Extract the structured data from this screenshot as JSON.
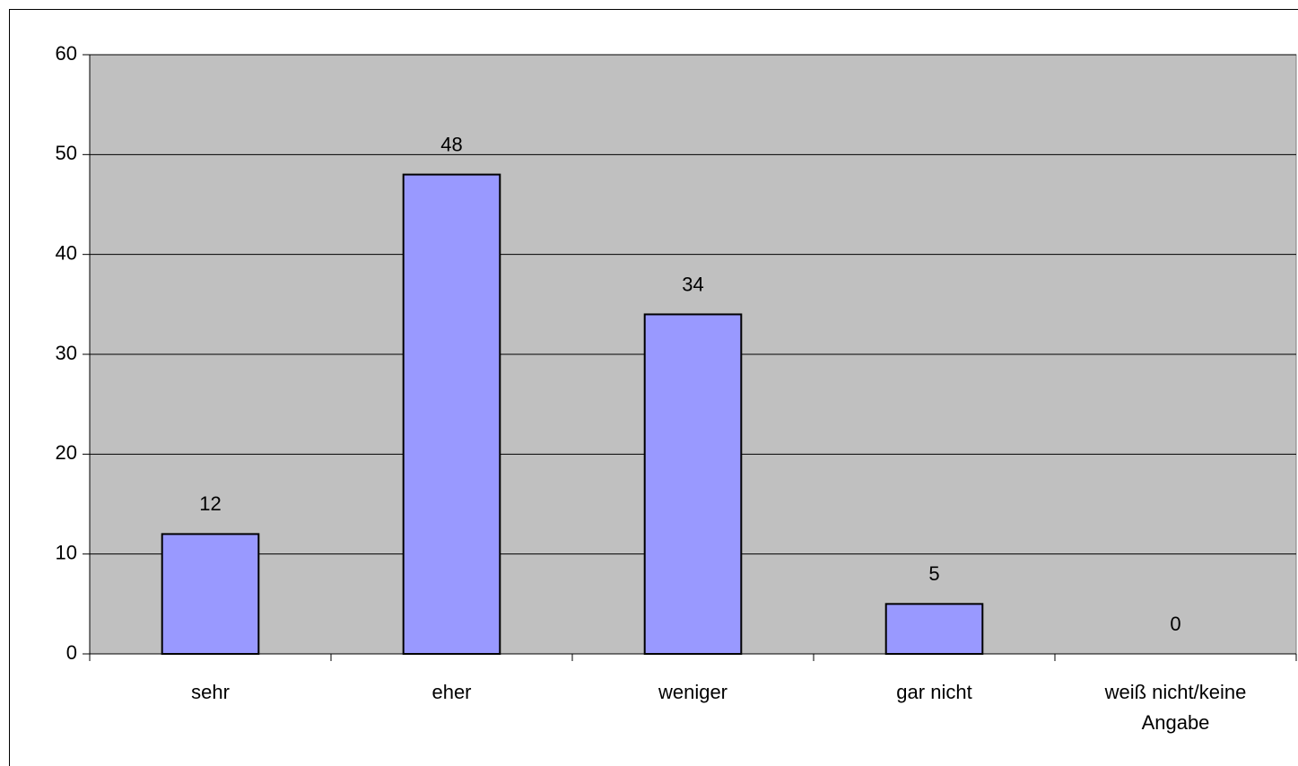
{
  "chart_data": {
    "type": "bar",
    "categories": [
      "sehr",
      "eher",
      "weniger",
      "gar nicht",
      "weiß nicht/keine Angabe"
    ],
    "values": [
      12,
      48,
      34,
      5,
      0
    ],
    "color": "#9999ff",
    "ylim": [
      0,
      60
    ],
    "yticks": [
      0,
      10,
      20,
      30,
      40,
      50,
      60
    ],
    "grid": true
  }
}
